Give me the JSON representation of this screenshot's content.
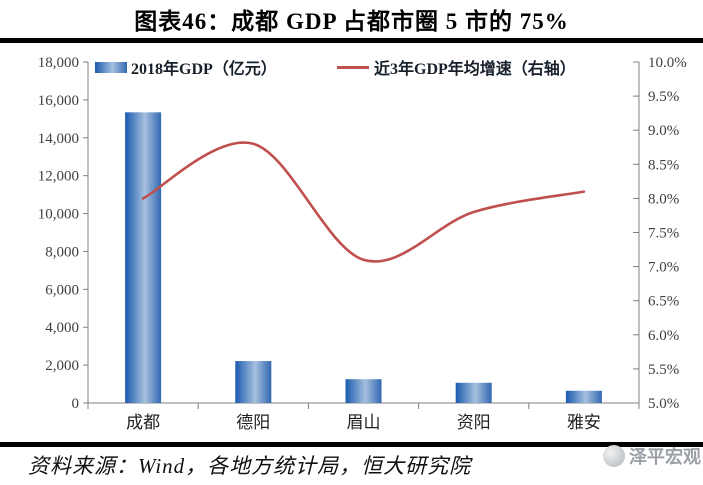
{
  "title": "图表46：成都 GDP 占都市圈 5 市的 75%",
  "legend": [
    {
      "label": "2018年GDP（亿元）",
      "swatch": "bar-gradient-blue"
    },
    {
      "label": "近3年GDP年均增速（右轴）",
      "swatch": "line-red"
    }
  ],
  "chart_data": {
    "type": "combo-bar-line",
    "categories": [
      "成都",
      "德阳",
      "眉山",
      "资阳",
      "雅安"
    ],
    "series": [
      {
        "name": "2018年GDP（亿元）",
        "type": "bar",
        "axis": "left",
        "values": [
          15343,
          2214,
          1256,
          1067,
          646
        ]
      },
      {
        "name": "近3年GDP年均增速（右轴）",
        "type": "line",
        "axis": "right",
        "values": [
          8.0,
          8.8,
          7.1,
          7.8,
          8.1
        ]
      }
    ],
    "left_axis": {
      "min": 0,
      "max": 18000,
      "step": 2000,
      "tick_labels": [
        "0",
        "2,000",
        "4,000",
        "6,000",
        "8,000",
        "10,000",
        "12,000",
        "14,000",
        "16,000",
        "18,000"
      ]
    },
    "right_axis": {
      "min": 5.0,
      "max": 10.0,
      "step": 0.5,
      "tick_labels": [
        "5.0%",
        "5.5%",
        "6.0%",
        "6.5%",
        "7.0%",
        "7.5%",
        "8.0%",
        "8.5%",
        "9.0%",
        "9.5%",
        "10.0%"
      ]
    },
    "grid": false,
    "legend_position": "top",
    "colors": {
      "bar_edge": "#1A5AAE",
      "bar_mid": "#A6C0DF",
      "bar_edge2": "#3168B1",
      "line": "#C0504D",
      "axis": "#808080",
      "tick_text": "#3F3F3F",
      "category_text": "#222222"
    }
  },
  "footer": {
    "source": "资料来源：Wind，各地方统计局，恒大研究院",
    "watermark": "泽平宏观"
  }
}
